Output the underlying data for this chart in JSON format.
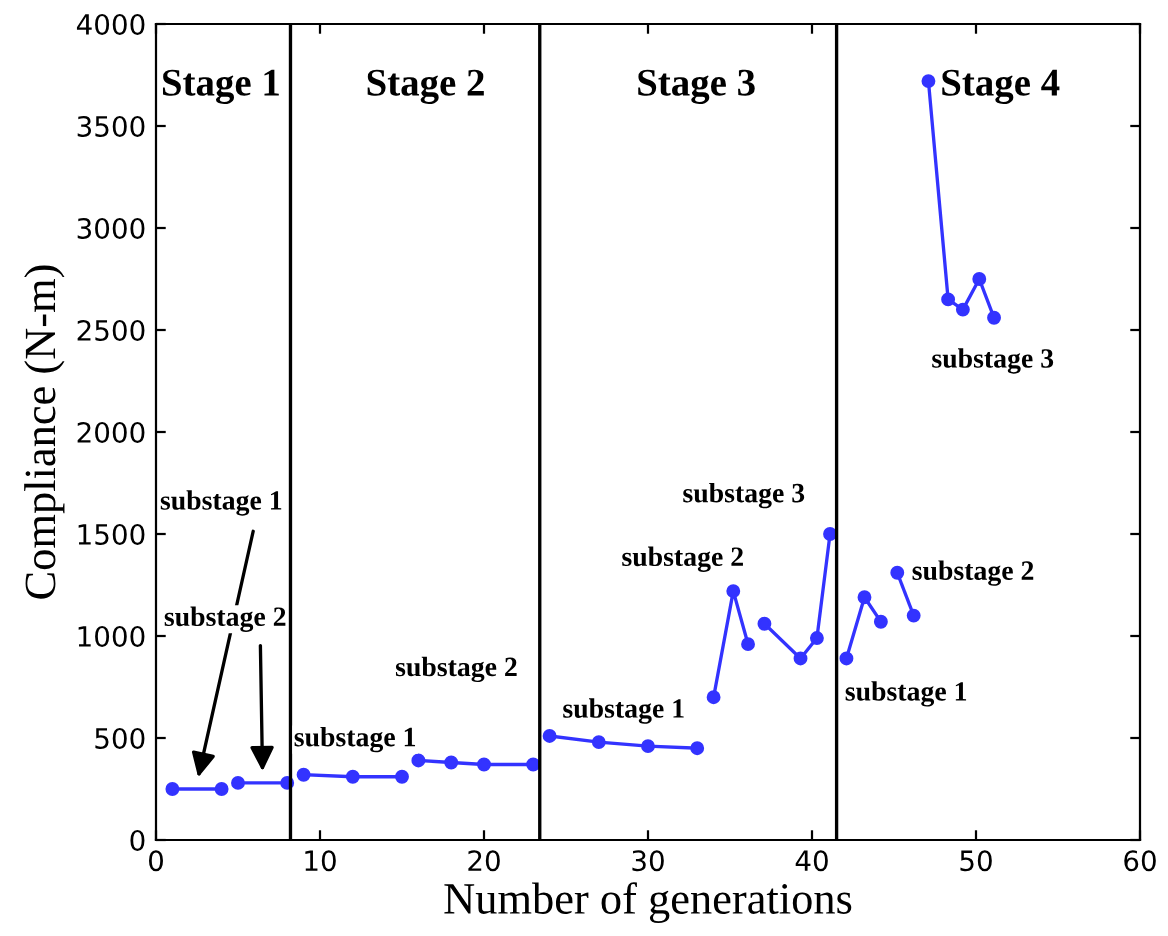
{
  "chart_data": {
    "type": "line",
    "xlabel": "Number of generations",
    "ylabel": "Compliance (N-m)",
    "xlim": [
      0,
      60
    ],
    "ylim": [
      0,
      4000
    ],
    "xticks": [
      0,
      10,
      20,
      30,
      40,
      50,
      60
    ],
    "yticks": [
      0,
      500,
      1000,
      1500,
      2000,
      2500,
      3000,
      3500,
      4000
    ],
    "grid": false,
    "marker": "circle",
    "line_style": "solid",
    "series": [
      {
        "color": "#3333ff",
        "x": [
          1,
          4
        ],
        "values": [
          250,
          250
        ]
      },
      {
        "color": "#3333ff",
        "x": [
          5,
          8
        ],
        "values": [
          280,
          280
        ]
      },
      {
        "color": "#3333ff",
        "x": [
          9,
          12,
          15
        ],
        "values": [
          320,
          310,
          310
        ]
      },
      {
        "color": "#3333ff",
        "x": [
          16,
          18,
          20,
          23
        ],
        "values": [
          390,
          380,
          370,
          370
        ]
      },
      {
        "color": "#3333ff",
        "x": [
          24,
          27,
          30,
          33
        ],
        "values": [
          510,
          480,
          460,
          450
        ]
      },
      {
        "color": "#3333ff",
        "x": [
          34,
          35.2,
          36.1
        ],
        "values": [
          700,
          1220,
          960
        ]
      },
      {
        "color": "#3333ff",
        "x": [
          37.1,
          39.3,
          40.3,
          41.1
        ],
        "values": [
          1060,
          890,
          990,
          1500
        ]
      },
      {
        "color": "#3333ff",
        "x": [
          42.1,
          43.2,
          44.2
        ],
        "values": [
          890,
          1190,
          1070
        ]
      },
      {
        "color": "#3333ff",
        "x": [
          45.2,
          46.2
        ],
        "values": [
          1310,
          1100
        ]
      },
      {
        "color": "#3333ff",
        "x": [
          47.1,
          48.3,
          49.2,
          50.2,
          51.1
        ],
        "values": [
          3720,
          2650,
          2600,
          2750,
          2560
        ]
      }
    ],
    "ref_lines": [
      {
        "axis": "x",
        "value": 8.2,
        "color": "#000000"
      },
      {
        "axis": "x",
        "value": 23.4,
        "color": "#000000"
      },
      {
        "axis": "x",
        "value": 41.5,
        "color": "#000000"
      }
    ],
    "annotations": [
      "substage 1",
      "substage 2",
      "Stage 1",
      "Stage 2",
      "Stage 3",
      "Stage 4",
      "substage 1",
      "substage 2",
      "substage 1",
      "substage 2",
      "substage 3",
      "substage 1",
      "substage 2",
      "substage 3"
    ]
  }
}
